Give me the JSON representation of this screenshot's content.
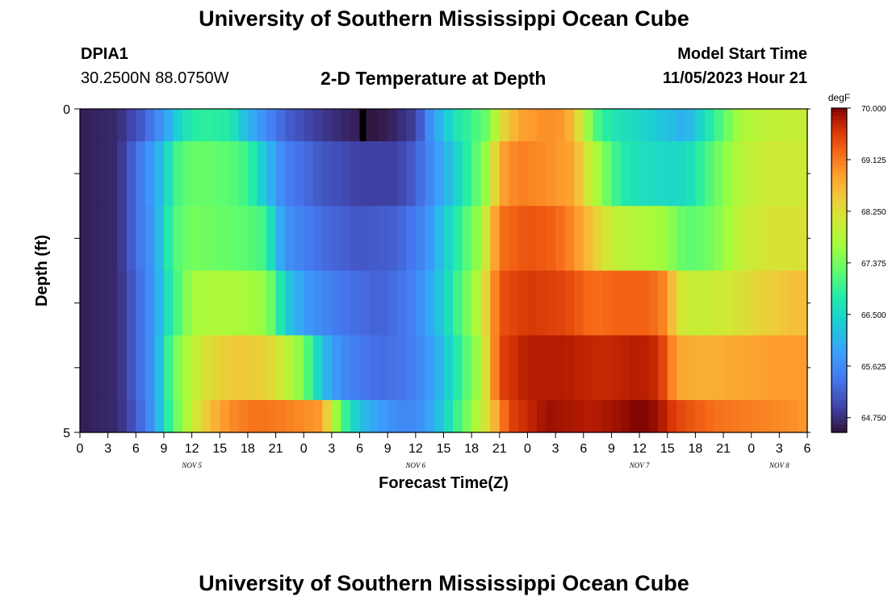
{
  "header": {
    "title": "University of Southern Mississippi Ocean Cube",
    "station": "DPIA1",
    "coordinates": "30.2500N  88.0750W",
    "plot_title": "2-D Temperature at Depth",
    "start_label": "Model Start Time",
    "start_time": "11/05/2023 Hour 21"
  },
  "footer": {
    "title": "University of Southern Mississippi Ocean Cube"
  },
  "chart_data": {
    "type": "heatmap",
    "title": "2-D Temperature at Depth",
    "xlabel": "Forecast Time(Z)",
    "ylabel": "Depth (ft)",
    "units": "degF",
    "y_range": [
      0,
      5
    ],
    "y_tick_labels": [
      "0",
      "5"
    ],
    "x_range_hours": [
      0,
      78
    ],
    "x_tick_labels": [
      "0",
      "3",
      "6",
      "9",
      "12",
      "15",
      "18",
      "21",
      "0",
      "3",
      "6",
      "9",
      "12",
      "15",
      "18",
      "21",
      "0",
      "3",
      "6",
      "9",
      "12",
      "15",
      "18",
      "21",
      "0",
      "3",
      "6"
    ],
    "day_labels": [
      {
        "label": "NOV 5",
        "hour": 12
      },
      {
        "label": "NOV 6",
        "hour": 36
      },
      {
        "label": "NOV 7",
        "hour": 60
      },
      {
        "label": "NOV 8",
        "hour": 75
      }
    ],
    "colorbar": {
      "min": 64.5,
      "max": 70.0,
      "tick_labels": [
        "70.000",
        "69.125",
        "68.250",
        "67.375",
        "66.500",
        "65.625",
        "64.750"
      ]
    },
    "depth_layers": [
      {
        "depth_range": [
          0,
          0.5
        ],
        "knots": [
          [
            0,
            64.6
          ],
          [
            4,
            64.7
          ],
          [
            7,
            65.2
          ],
          [
            9,
            65.8
          ],
          [
            10,
            66.2
          ],
          [
            11,
            66.6
          ],
          [
            13,
            66.9
          ],
          [
            16,
            66.8
          ],
          [
            18,
            66.1
          ],
          [
            20,
            65.6
          ],
          [
            22,
            65.2
          ],
          [
            25,
            64.9
          ],
          [
            28,
            64.7
          ],
          [
            30,
            64.6
          ],
          [
            31,
            64.5
          ],
          [
            33,
            64.6
          ],
          [
            36,
            64.9
          ],
          [
            37,
            65.4
          ],
          [
            38,
            65.9
          ],
          [
            39,
            66.2
          ],
          [
            40,
            66.6
          ],
          [
            42,
            67.0
          ],
          [
            44,
            67.4
          ],
          [
            45,
            68.2
          ],
          [
            47,
            68.8
          ],
          [
            50,
            69.0
          ],
          [
            52,
            68.9
          ],
          [
            53,
            68.5
          ],
          [
            54,
            68.0
          ],
          [
            55,
            67.2
          ],
          [
            57,
            66.7
          ],
          [
            60,
            66.5
          ],
          [
            63,
            66.2
          ],
          [
            65,
            66.0
          ],
          [
            67,
            66.6
          ],
          [
            69,
            67.2
          ],
          [
            71,
            67.8
          ],
          [
            73,
            67.9
          ],
          [
            76,
            68.0
          ],
          [
            78,
            68.0
          ]
        ]
      },
      {
        "depth_range": [
          0.5,
          1.5
        ],
        "knots": [
          [
            0,
            64.6
          ],
          [
            4,
            64.7
          ],
          [
            6,
            65.3
          ],
          [
            8,
            65.9
          ],
          [
            9,
            66.3
          ],
          [
            10,
            66.9
          ],
          [
            11,
            67.2
          ],
          [
            13,
            67.3
          ],
          [
            16,
            67.2
          ],
          [
            18,
            67.0
          ],
          [
            20,
            66.2
          ],
          [
            22,
            65.5
          ],
          [
            26,
            65.1
          ],
          [
            30,
            64.9
          ],
          [
            34,
            64.9
          ],
          [
            36,
            65.2
          ],
          [
            38,
            65.7
          ],
          [
            40,
            66.3
          ],
          [
            42,
            67.0
          ],
          [
            44,
            67.8
          ],
          [
            45,
            68.8
          ],
          [
            47,
            69.1
          ],
          [
            50,
            69.0
          ],
          [
            53,
            68.8
          ],
          [
            54,
            68.3
          ],
          [
            56,
            67.5
          ],
          [
            58,
            66.8
          ],
          [
            60,
            66.6
          ],
          [
            63,
            66.5
          ],
          [
            65,
            66.5
          ],
          [
            67,
            67.0
          ],
          [
            69,
            67.5
          ],
          [
            71,
            67.9
          ],
          [
            74,
            68.1
          ],
          [
            78,
            68.1
          ]
        ]
      },
      {
        "depth_range": [
          1.5,
          2.5
        ],
        "knots": [
          [
            0,
            64.6
          ],
          [
            4,
            64.7
          ],
          [
            6,
            65.3
          ],
          [
            8,
            65.8
          ],
          [
            9,
            66.5
          ],
          [
            10,
            67.1
          ],
          [
            12,
            67.4
          ],
          [
            15,
            67.3
          ],
          [
            18,
            67.2
          ],
          [
            20,
            67.0
          ],
          [
            21,
            66.2
          ],
          [
            22,
            65.7
          ],
          [
            26,
            65.3
          ],
          [
            30,
            65.1
          ],
          [
            34,
            65.2
          ],
          [
            37,
            65.6
          ],
          [
            39,
            66.3
          ],
          [
            41,
            67.0
          ],
          [
            43,
            67.7
          ],
          [
            45,
            69.2
          ],
          [
            48,
            69.4
          ],
          [
            51,
            69.3
          ],
          [
            53,
            69.0
          ],
          [
            55,
            68.5
          ],
          [
            57,
            68.0
          ],
          [
            60,
            67.8
          ],
          [
            62,
            67.7
          ],
          [
            63,
            67.6
          ],
          [
            65,
            67.2
          ],
          [
            67,
            67.3
          ],
          [
            69,
            67.6
          ],
          [
            71,
            68.0
          ],
          [
            74,
            68.2
          ],
          [
            78,
            68.2
          ]
        ]
      },
      {
        "depth_range": [
          2.5,
          3.5
        ],
        "knots": [
          [
            0,
            64.6
          ],
          [
            4,
            64.7
          ],
          [
            6,
            65.2
          ],
          [
            8,
            65.8
          ],
          [
            9,
            66.4
          ],
          [
            10,
            66.9
          ],
          [
            11,
            67.3
          ],
          [
            12,
            67.7
          ],
          [
            15,
            67.8
          ],
          [
            18,
            67.7
          ],
          [
            20,
            67.6
          ],
          [
            21,
            67.0
          ],
          [
            22,
            66.4
          ],
          [
            24,
            65.8
          ],
          [
            28,
            65.4
          ],
          [
            32,
            65.2
          ],
          [
            35,
            65.4
          ],
          [
            37,
            65.8
          ],
          [
            39,
            66.4
          ],
          [
            41,
            67.2
          ],
          [
            43,
            68.0
          ],
          [
            45,
            69.4
          ],
          [
            48,
            69.6
          ],
          [
            52,
            69.5
          ],
          [
            55,
            69.2
          ],
          [
            58,
            69.3
          ],
          [
            61,
            69.3
          ],
          [
            63,
            69.0
          ],
          [
            64,
            68.2
          ],
          [
            66,
            68.0
          ],
          [
            69,
            68.1
          ],
          [
            72,
            68.3
          ],
          [
            75,
            68.5
          ],
          [
            78,
            68.6
          ]
        ]
      },
      {
        "depth_range": [
          3.5,
          4.5
        ],
        "knots": [
          [
            0,
            64.6
          ],
          [
            4,
            64.7
          ],
          [
            6,
            65.2
          ],
          [
            8,
            65.8
          ],
          [
            9,
            66.6
          ],
          [
            10,
            67.3
          ],
          [
            12,
            67.9
          ],
          [
            14,
            68.3
          ],
          [
            17,
            68.5
          ],
          [
            20,
            68.4
          ],
          [
            22,
            68.0
          ],
          [
            24,
            67.4
          ],
          [
            26,
            66.2
          ],
          [
            28,
            65.6
          ],
          [
            32,
            65.3
          ],
          [
            35,
            65.4
          ],
          [
            37,
            65.7
          ],
          [
            39,
            66.2
          ],
          [
            41,
            67.0
          ],
          [
            43,
            67.8
          ],
          [
            45,
            69.5
          ],
          [
            48,
            69.8
          ],
          [
            52,
            69.8
          ],
          [
            56,
            69.7
          ],
          [
            60,
            69.8
          ],
          [
            62,
            69.7
          ],
          [
            63,
            69.3
          ],
          [
            64,
            68.8
          ],
          [
            67,
            68.7
          ],
          [
            71,
            68.8
          ],
          [
            75,
            68.9
          ],
          [
            78,
            68.9
          ]
        ]
      },
      {
        "depth_range": [
          4.5,
          5.0
        ],
        "knots": [
          [
            0,
            64.6
          ],
          [
            4,
            64.7
          ],
          [
            6,
            65.1
          ],
          [
            8,
            65.8
          ],
          [
            9,
            66.5
          ],
          [
            10,
            67.2
          ],
          [
            12,
            68.0
          ],
          [
            14,
            68.6
          ],
          [
            16,
            69.0
          ],
          [
            19,
            69.2
          ],
          [
            22,
            69.1
          ],
          [
            26,
            68.9
          ],
          [
            27,
            68.0
          ],
          [
            28,
            67.3
          ],
          [
            29,
            66.6
          ],
          [
            31,
            66.0
          ],
          [
            34,
            65.6
          ],
          [
            36,
            65.6
          ],
          [
            38,
            66.0
          ],
          [
            40,
            66.8
          ],
          [
            42,
            67.6
          ],
          [
            44,
            68.4
          ],
          [
            46,
            69.5
          ],
          [
            50,
            69.9
          ],
          [
            55,
            69.8
          ],
          [
            58,
            69.9
          ],
          [
            60,
            70.0
          ],
          [
            62,
            69.9
          ],
          [
            64,
            69.5
          ],
          [
            68,
            69.2
          ],
          [
            72,
            69.1
          ],
          [
            76,
            69.0
          ],
          [
            78,
            68.9
          ]
        ]
      }
    ],
    "annotations": [
      {
        "label": "missing-data",
        "hour_range": [
          30.0,
          30.7
        ],
        "depth_range": [
          0,
          0.5
        ]
      }
    ]
  }
}
